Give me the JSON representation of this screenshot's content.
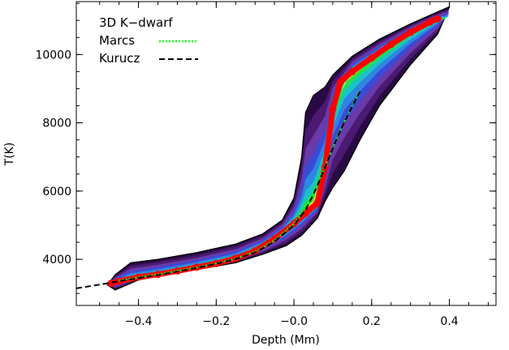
{
  "chart_data": {
    "type": "scatter",
    "title": "",
    "xlabel": "Depth (Mm)",
    "ylabel": "T(K)",
    "xlim": [
      -0.56,
      0.52
    ],
    "ylim": [
      2650,
      11550
    ],
    "x_ticks": [
      -0.4,
      -0.2,
      0.0,
      0.2,
      0.4
    ],
    "x_tick_labels": [
      "−0.4",
      "−0.2",
      "−0.0",
      "0.2",
      "0.4"
    ],
    "y_ticks": [
      4000,
      6000,
      8000,
      10000
    ],
    "y_tick_labels": [
      "4000",
      "6000",
      "8000",
      "10000"
    ],
    "grid": false,
    "legend_placement": "top-left",
    "legend_title": "3D K−dwarf",
    "series": [
      {
        "name": "Marcs",
        "style": "dotted",
        "color": "#00ff00",
        "x": [
          -0.45,
          -0.4,
          -0.35,
          -0.3,
          -0.25,
          -0.2,
          -0.15,
          -0.1,
          -0.05,
          0.0,
          0.03,
          0.05,
          0.07,
          0.09,
          0.11,
          0.13,
          0.15,
          0.17
        ],
        "y": [
          3380,
          3470,
          3560,
          3660,
          3760,
          3880,
          4020,
          4220,
          4550,
          5050,
          5500,
          5950,
          6450,
          7000,
          7550,
          8050,
          8500,
          8950
        ]
      },
      {
        "name": "Kurucz",
        "style": "dashed",
        "color": "#000000",
        "x": [
          -0.56,
          -0.5,
          -0.45,
          -0.4,
          -0.35,
          -0.3,
          -0.25,
          -0.2,
          -0.15,
          -0.1,
          -0.05,
          0.0,
          0.03,
          0.05,
          0.07,
          0.09,
          0.11,
          0.13,
          0.15,
          0.17
        ],
        "y": [
          3150,
          3260,
          3360,
          3450,
          3540,
          3640,
          3750,
          3870,
          4010,
          4200,
          4520,
          5000,
          5450,
          5900,
          6420,
          6980,
          7530,
          8030,
          8480,
          8920
        ]
      }
    ],
    "distribution_ridge": {
      "color": "#ff0000",
      "x": [
        -0.47,
        -0.45,
        -0.4,
        -0.35,
        -0.3,
        -0.25,
        -0.2,
        -0.15,
        -0.1,
        -0.05,
        0.0,
        0.03,
        0.06,
        0.08,
        0.1,
        0.12,
        0.15,
        0.2,
        0.25,
        0.3,
        0.35,
        0.37
      ],
      "y": [
        3300,
        3360,
        3480,
        3560,
        3660,
        3770,
        3880,
        4030,
        4250,
        4600,
        5050,
        5350,
        5650,
        6700,
        8400,
        9200,
        9500,
        9900,
        10300,
        10650,
        10950,
        11050
      ]
    },
    "distribution_envelope": {
      "upper_x": [
        -0.48,
        -0.46,
        -0.42,
        -0.35,
        -0.25,
        -0.15,
        -0.08,
        -0.03,
        0.0,
        0.02,
        0.03,
        0.05,
        0.08,
        0.1,
        0.15,
        0.22,
        0.3,
        0.36,
        0.4
      ],
      "upper_y": [
        3250,
        3550,
        3900,
        4000,
        4200,
        4450,
        4750,
        5150,
        5800,
        7000,
        8300,
        8800,
        9050,
        9400,
        9950,
        10450,
        10900,
        11200,
        11400
      ],
      "lower_x": [
        0.4,
        0.37,
        0.3,
        0.22,
        0.17,
        0.13,
        0.1,
        0.08,
        0.06,
        0.02,
        -0.02,
        -0.08,
        -0.15,
        -0.25,
        -0.35,
        -0.4,
        -0.46,
        -0.48
      ],
      "lower_y": [
        11400,
        10600,
        9700,
        8500,
        7500,
        6600,
        6100,
        5700,
        5200,
        4700,
        4400,
        4150,
        3900,
        3700,
        3500,
        3400,
        3100,
        3250
      ]
    },
    "colormap": [
      "#2a0a45",
      "#4b1a73",
      "#6a3aa8",
      "#3a4ad8",
      "#2f86e0",
      "#19c4c4",
      "#22e04a",
      "#e8f020",
      "#ff2a00"
    ]
  }
}
